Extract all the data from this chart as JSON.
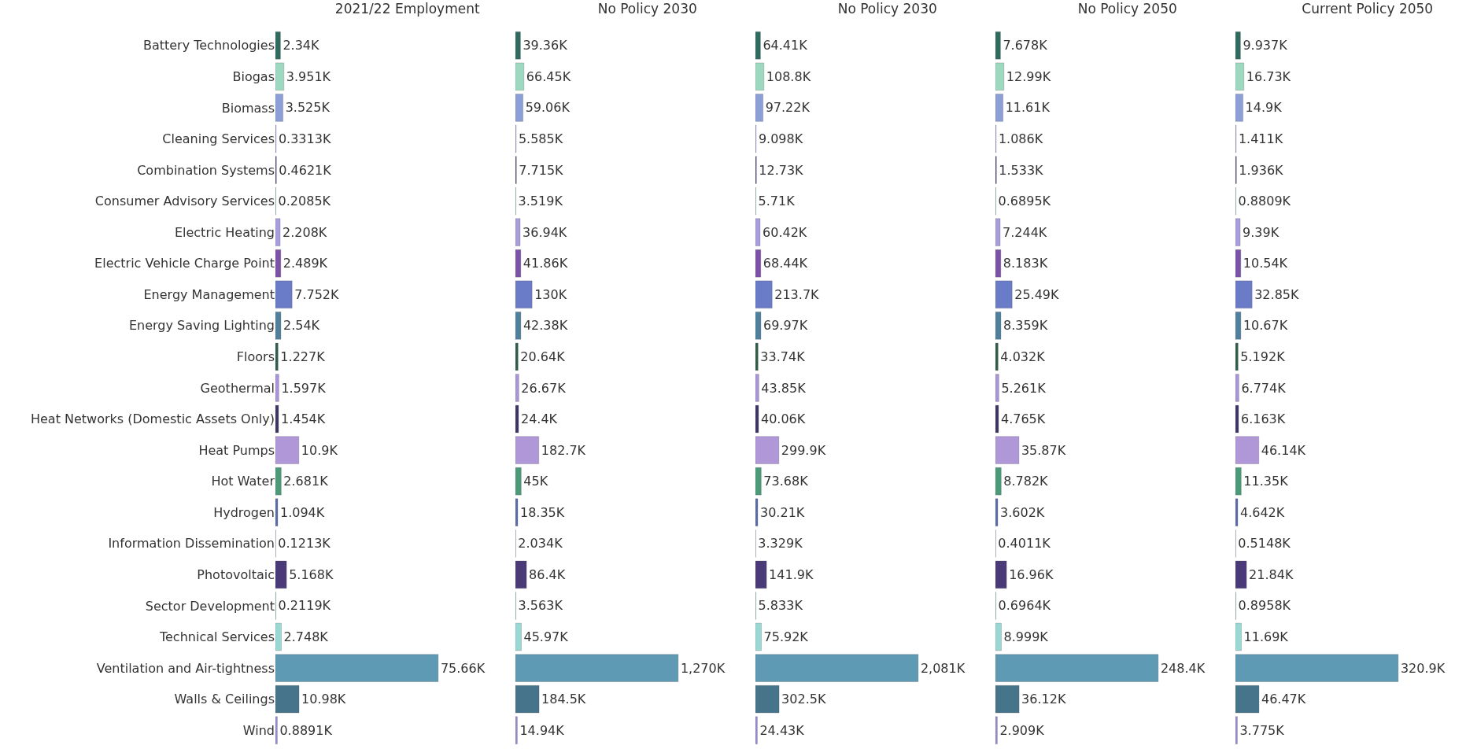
{
  "chart_data": [
    {
      "type": "bar",
      "orientation": "horizontal",
      "title": "2021/22 Employment",
      "tick_labels": "y",
      "legend": false,
      "categories": [
        "Battery Technologies",
        "Biogas",
        "Biomass",
        "Cleaning Services",
        "Combination Systems",
        "Consumer Advisory Services",
        "Electric Heating",
        "Electric Vehicle Charge Point",
        "Energy Management",
        "Energy Saving Lighting",
        "Floors",
        "Geothermal",
        "Heat Networks (Domestic Assets Only)",
        "Heat Pumps",
        "Hot Water",
        "Hydrogen",
        "Information Dissemination",
        "Photovoltaic",
        "Sector Development",
        "Technical Services",
        "Ventilation and Air-tightness",
        "Walls & Ceilings",
        "Wind"
      ],
      "colors": [
        "#2f6b5e",
        "#9dd9c0",
        "#8c9fd6",
        "#a99ad6",
        "#5a4a7a",
        "#7fc9a8",
        "#a89ede",
        "#7c52a8",
        "#6a7bc8",
        "#4f819e",
        "#2e5e48",
        "#a996d8",
        "#3e3468",
        "#b097d8",
        "#4b9a78",
        "#5a6cae",
        "#8e86c0",
        "#4a3a78",
        "#7ec8b4",
        "#9ad8d4",
        "#5f9ab4",
        "#46748a",
        "#9a8ad6"
      ],
      "values": [
        2.34,
        3.951,
        3.525,
        0.3313,
        0.4621,
        0.2085,
        2.208,
        2.489,
        7.752,
        2.54,
        1.227,
        1.597,
        1.454,
        10.9,
        2.681,
        1.094,
        0.1213,
        5.168,
        0.2119,
        2.748,
        75.66,
        10.98,
        0.8891
      ],
      "value_labels": [
        "2.34K",
        "3.951K",
        "3.525K",
        "0.3313K",
        "0.4621K",
        "0.2085K",
        "2.208K",
        "2.489K",
        "7.752K",
        "2.54K",
        "1.227K",
        "1.597K",
        "1.454K",
        "10.9K",
        "2.681K",
        "1.094K",
        "0.1213K",
        "5.168K",
        "0.2119K",
        "2.748K",
        "75.66K",
        "10.98K",
        "0.8891K"
      ]
    },
    {
      "type": "bar",
      "orientation": "horizontal",
      "title": "No Policy 2030",
      "tick_labels": false,
      "legend": false,
      "categories": [
        null,
        null,
        null,
        null,
        null,
        null,
        null,
        null,
        null,
        null,
        null,
        null,
        null,
        null,
        null,
        null,
        null,
        null,
        null,
        null,
        null,
        null,
        null
      ],
      "colors": [
        "#2f6b5e",
        "#9dd9c0",
        "#8c9fd6",
        "#a99ad6",
        "#5a4a7a",
        "#7fc9a8",
        "#a89ede",
        "#7c52a8",
        "#6a7bc8",
        "#4f819e",
        "#2e5e48",
        "#a996d8",
        "#3e3468",
        "#b097d8",
        "#4b9a78",
        "#5a6cae",
        "#8e86c0",
        "#4a3a78",
        "#7ec8b4",
        "#9ad8d4",
        "#5f9ab4",
        "#46748a",
        "#9a8ad6"
      ],
      "values": [
        39.36,
        66.45,
        59.06,
        5.585,
        7.715,
        3.519,
        36.94,
        41.86,
        130,
        42.38,
        20.64,
        26.67,
        24.4,
        182.7,
        45,
        18.35,
        2.034,
        86.4,
        3.563,
        45.97,
        1270,
        184.5,
        14.94
      ],
      "value_labels": [
        "39.36K",
        "66.45K",
        "59.06K",
        "5.585K",
        "7.715K",
        "3.519K",
        "36.94K",
        "41.86K",
        "130K",
        "42.38K",
        "20.64K",
        "26.67K",
        "24.4K",
        "182.7K",
        "45K",
        "18.35K",
        "2.034K",
        "86.4K",
        "3.563K",
        "45.97K",
        "1,270K",
        "184.5K",
        "14.94K"
      ]
    },
    {
      "type": "bar",
      "orientation": "horizontal",
      "title": "No Policy 2030",
      "tick_labels": false,
      "legend": false,
      "categories": [
        null,
        null,
        null,
        null,
        null,
        null,
        null,
        null,
        null,
        null,
        null,
        null,
        null,
        null,
        null,
        null,
        null,
        null,
        null,
        null,
        null,
        null,
        null
      ],
      "colors": [
        "#2f6b5e",
        "#9dd9c0",
        "#8c9fd6",
        "#a99ad6",
        "#5a4a7a",
        "#7fc9a8",
        "#a89ede",
        "#7c52a8",
        "#6a7bc8",
        "#4f819e",
        "#2e5e48",
        "#a996d8",
        "#3e3468",
        "#b097d8",
        "#4b9a78",
        "#5a6cae",
        "#8e86c0",
        "#4a3a78",
        "#7ec8b4",
        "#9ad8d4",
        "#5f9ab4",
        "#46748a",
        "#9a8ad6"
      ],
      "values": [
        64.41,
        108.8,
        97.22,
        9.098,
        12.73,
        5.71,
        60.42,
        68.44,
        213.7,
        69.97,
        33.74,
        43.85,
        40.06,
        299.9,
        73.68,
        30.21,
        3.329,
        141.9,
        5.833,
        75.92,
        2081,
        302.5,
        24.43
      ],
      "value_labels": [
        "64.41K",
        "108.8K",
        "97.22K",
        "9.098K",
        "12.73K",
        "5.71K",
        "60.42K",
        "68.44K",
        "213.7K",
        "69.97K",
        "33.74K",
        "43.85K",
        "40.06K",
        "299.9K",
        "73.68K",
        "30.21K",
        "3.329K",
        "141.9K",
        "5.833K",
        "75.92K",
        "2,081K",
        "302.5K",
        "24.43K"
      ]
    },
    {
      "type": "bar",
      "orientation": "horizontal",
      "title": "No Policy 2050",
      "tick_labels": false,
      "legend": false,
      "categories": [
        null,
        null,
        null,
        null,
        null,
        null,
        null,
        null,
        null,
        null,
        null,
        null,
        null,
        null,
        null,
        null,
        null,
        null,
        null,
        null,
        null,
        null,
        null
      ],
      "colors": [
        "#2f6b5e",
        "#9dd9c0",
        "#8c9fd6",
        "#a99ad6",
        "#5a4a7a",
        "#7fc9a8",
        "#a89ede",
        "#7c52a8",
        "#6a7bc8",
        "#4f819e",
        "#2e5e48",
        "#a996d8",
        "#3e3468",
        "#b097d8",
        "#4b9a78",
        "#5a6cae",
        "#8e86c0",
        "#4a3a78",
        "#7ec8b4",
        "#9ad8d4",
        "#5f9ab4",
        "#46748a",
        "#9a8ad6"
      ],
      "values": [
        7.678,
        12.99,
        11.61,
        1.086,
        1.533,
        0.6895,
        7.244,
        8.183,
        25.49,
        8.359,
        4.032,
        5.261,
        4.765,
        35.87,
        8.782,
        3.602,
        0.4011,
        16.96,
        0.6964,
        8.999,
        248.4,
        36.12,
        2.909
      ],
      "value_labels": [
        "7.678K",
        "12.99K",
        "11.61K",
        "1.086K",
        "1.533K",
        "0.6895K",
        "7.244K",
        "8.183K",
        "25.49K",
        "8.359K",
        "4.032K",
        "5.261K",
        "4.765K",
        "35.87K",
        "8.782K",
        "3.602K",
        "0.4011K",
        "16.96K",
        "0.6964K",
        "8.999K",
        "248.4K",
        "36.12K",
        "2.909K"
      ]
    },
    {
      "type": "bar",
      "orientation": "horizontal",
      "title": "Current Policy 2050",
      "tick_labels": false,
      "legend": false,
      "categories": [
        null,
        null,
        null,
        null,
        null,
        null,
        null,
        null,
        null,
        null,
        null,
        null,
        null,
        null,
        null,
        null,
        null,
        null,
        null,
        null,
        null,
        null,
        null
      ],
      "colors": [
        "#2f6b5e",
        "#9dd9c0",
        "#8c9fd6",
        "#a99ad6",
        "#5a4a7a",
        "#7fc9a8",
        "#a89ede",
        "#7c52a8",
        "#6a7bc8",
        "#4f819e",
        "#2e5e48",
        "#a996d8",
        "#3e3468",
        "#b097d8",
        "#4b9a78",
        "#5a6cae",
        "#8e86c0",
        "#4a3a78",
        "#7ec8b4",
        "#9ad8d4",
        "#5f9ab4",
        "#46748a",
        "#9a8ad6"
      ],
      "values": [
        9.937,
        16.73,
        14.9,
        1.411,
        1.936,
        0.8809,
        9.39,
        10.54,
        32.85,
        10.67,
        5.192,
        6.774,
        6.163,
        46.14,
        11.35,
        4.642,
        0.5148,
        21.84,
        0.8958,
        11.69,
        320.9,
        46.47,
        3.775
      ],
      "value_labels": [
        "9.937K",
        "16.73K",
        "14.9K",
        "1.411K",
        "1.936K",
        "0.8809K",
        "9.39K",
        "10.54K",
        "32.85K",
        "10.67K",
        "5.192K",
        "6.774K",
        "6.163K",
        "46.14K",
        "11.35K",
        "4.642K",
        "0.5148K",
        "21.84K",
        "0.8958K",
        "11.69K",
        "320.9K",
        "46.47K",
        "3.775K"
      ]
    }
  ]
}
